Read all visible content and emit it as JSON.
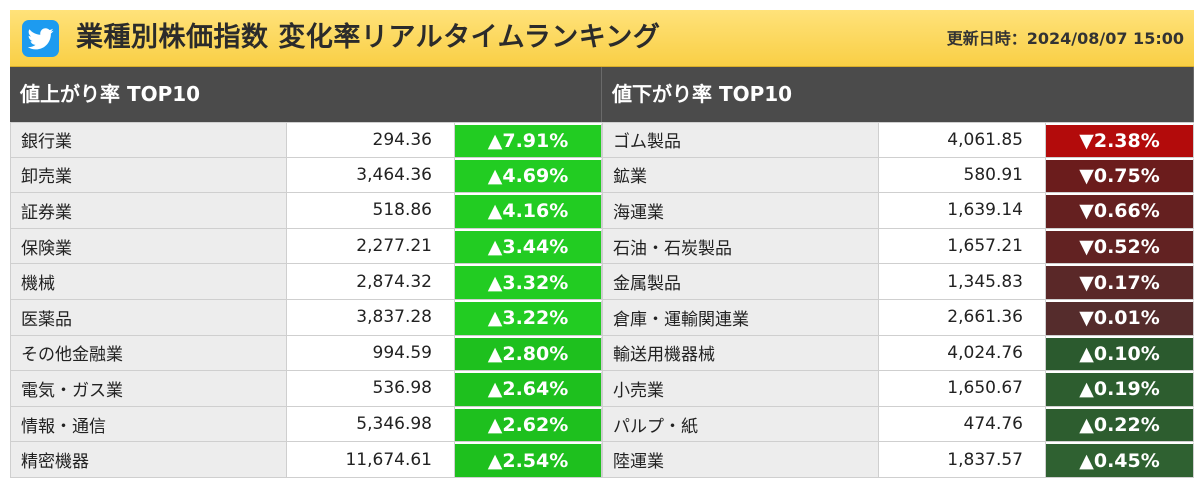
{
  "header": {
    "title": "業種別株価指数 変化率リアルタイムランキング",
    "updated": "更新日時：2024/08/07 15:00",
    "logo_icon": "bird-logo-icon"
  },
  "gainers": {
    "heading": "値上がり率 TOP10",
    "rows": [
      {
        "name": "銀行業",
        "value": "294.36",
        "change": "▲7.91%",
        "color": "#22cc22"
      },
      {
        "name": "卸売業",
        "value": "3,464.36",
        "change": "▲4.69%",
        "color": "#22cc22"
      },
      {
        "name": "証券業",
        "value": "518.86",
        "change": "▲4.16%",
        "color": "#22cc22"
      },
      {
        "name": "保険業",
        "value": "2,277.21",
        "change": "▲3.44%",
        "color": "#22cc22"
      },
      {
        "name": "機械",
        "value": "2,874.32",
        "change": "▲3.32%",
        "color": "#22cc22"
      },
      {
        "name": "医薬品",
        "value": "3,837.28",
        "change": "▲3.22%",
        "color": "#22cc22"
      },
      {
        "name": "その他金融業",
        "value": "994.59",
        "change": "▲2.80%",
        "color": "#1ec01e"
      },
      {
        "name": "電気・ガス業",
        "value": "536.98",
        "change": "▲2.64%",
        "color": "#1ec01e"
      },
      {
        "name": "情報・通信",
        "value": "5,346.98",
        "change": "▲2.62%",
        "color": "#1ec01e"
      },
      {
        "name": "精密機器",
        "value": "11,674.61",
        "change": "▲2.54%",
        "color": "#1ec01e"
      }
    ]
  },
  "losers": {
    "heading": "値下がり率 TOP10",
    "rows": [
      {
        "name": "ゴム製品",
        "value": "4,061.85",
        "change": "▼2.38%",
        "color": "#b30b0b"
      },
      {
        "name": "鉱業",
        "value": "580.91",
        "change": "▼0.75%",
        "color": "#6b1c1c"
      },
      {
        "name": "海運業",
        "value": "1,639.14",
        "change": "▼0.66%",
        "color": "#652020"
      },
      {
        "name": "石油・石炭製品",
        "value": "1,657.21",
        "change": "▼0.52%",
        "color": "#622222"
      },
      {
        "name": "金属製品",
        "value": "1,345.83",
        "change": "▼0.17%",
        "color": "#5a2828"
      },
      {
        "name": "倉庫・運輸関連業",
        "value": "2,661.36",
        "change": "▼0.01%",
        "color": "#552c2c"
      },
      {
        "name": "輸送用機器械",
        "value": "4,024.76",
        "change": "▲0.10%",
        "color": "#2b5a2e"
      },
      {
        "name": "小売業",
        "value": "1,650.67",
        "change": "▲0.19%",
        "color": "#2d5d2f"
      },
      {
        "name": "パルプ・紙",
        "value": "474.76",
        "change": "▲0.22%",
        "color": "#2d5d2f"
      },
      {
        "name": "陸運業",
        "value": "1,837.57",
        "change": "▲0.45%",
        "color": "#2f6131"
      }
    ]
  }
}
